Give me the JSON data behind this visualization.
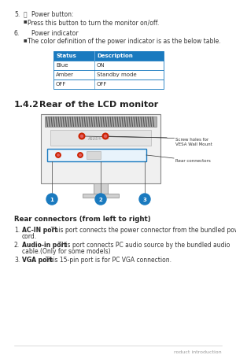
{
  "bg_color": "#ffffff",
  "section5_num": "5.",
  "section5_title": "Power button:",
  "section5_bullet": "Press this button to turn the monitor on/off.",
  "section6_num": "6.",
  "section6_title": "Power indicator",
  "section6_bullet": "The color definition of the power indicator is as the below table.",
  "table_header": [
    "Status",
    "Description"
  ],
  "table_rows": [
    [
      "Blue",
      "ON"
    ],
    [
      "Amber",
      "Standby mode"
    ],
    [
      "OFF",
      "OFF"
    ]
  ],
  "table_header_bg": "#1a7abf",
  "table_header_fg": "#ffffff",
  "table_border": "#1a7abf",
  "section_num": "1.4.2",
  "section_title_text": "Rear of the LCD monitor",
  "diagram_label1": "Screw holes for\nVESA Wall Mount",
  "diagram_label2": "Rear connectors",
  "connector_label": "Rear connectors (from left to right)",
  "items": [
    {
      "num": "1.",
      "bold": "AC-IN port",
      "rest": ". This port connects the power connector from the bundled power\ncord."
    },
    {
      "num": "2.",
      "bold": "Audio-in port",
      "rest": ". This port connects PC audio source by the bundled audio\ncable.(Only for some models)"
    },
    {
      "num": "3.",
      "bold": "VGA port",
      "rest": ". This 15-pin port is for PC VGA connection."
    }
  ],
  "footer_text": "roduct introduction",
  "circle_color": "#1a7abf",
  "red_dot": "#cc2200",
  "red_dot_inner": "#e06060",
  "gray_light": "#f0f0f0",
  "gray_mid": "#d0d0d0",
  "gray_dark": "#888888",
  "hatch_color": "#666666",
  "arrow_color": "#333333"
}
